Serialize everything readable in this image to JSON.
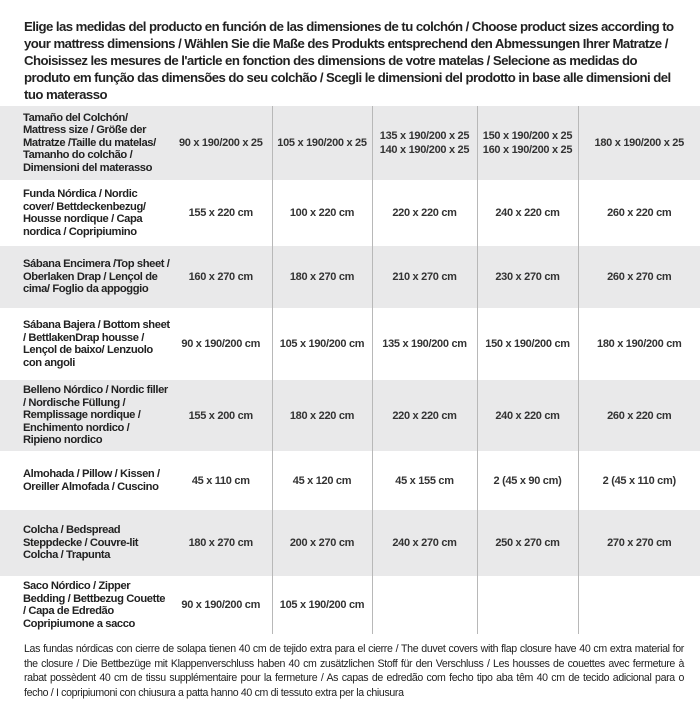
{
  "intro": "Elige las medidas del producto en función de las dimensiones de tu colchón / Choose product sizes according to your mattress dimensions / Wählen Sie die Maße des Produkts entsprechend den Abmessungen Ihrer Matratze / Choisissez les mesures de l'article en fonction des dimensions de votre matelas / Selecione as medidas do produto em função das dimensões do seu colchão / Scegli le dimensioni del prodotto in base alle dimensioni del tuo materasso",
  "table": {
    "header": {
      "label": "Tamaño del Colchón/ Mattress size / Größe der Matratze /Taille du matelas/ Tamanho do colchão / Dimensioni del materasso",
      "columns": [
        "90 x 190/200 x 25",
        "105 x 190/200 x 25",
        "135 x 190/200 x 25\n140 x 190/200 x 25",
        "150 x 190/200 x 25\n160 x 190/200 x 25",
        "180 x 190/200 x 25"
      ]
    },
    "rows": [
      {
        "label": "Funda Nórdica /  Nordic cover/ Bettdeckenbezug/ Housse nordique  / Capa nordica / Copripiumino",
        "values": [
          "155 x 220 cm",
          "100 x 220 cm",
          "220 x 220 cm",
          "240 x 220 cm",
          "260 x 220 cm"
        ]
      },
      {
        "label": "Sábana Encimera /Top sheet / Oberlaken Drap / Lençol de cima/ Foglio da appoggio",
        "values": [
          "160 x 270 cm",
          "180 x 270 cm",
          "210 x 270 cm",
          "230 x 270 cm",
          "260 x 270 cm"
        ]
      },
      {
        "label": "Sábana Bajera / Bottom sheet / BettlakenDrap housse / Lençol de baixo/ Lenzuolo con angoli",
        "values": [
          "90 x 190/200 cm",
          "105 x 190/200 cm",
          "135 x 190/200 cm",
          "150 x 190/200 cm",
          "180 x 190/200 cm"
        ]
      },
      {
        "label": "Belleno Nórdico / Nordic filler / Nordische Füllung / Remplissage nordique / Enchimento nordico / Ripieno nordico",
        "values": [
          "155 x 200 cm",
          "180 x 220 cm",
          "220 x 220 cm",
          "240 x 220 cm",
          "260 x 220 cm"
        ]
      },
      {
        "label": "Almohada  / Pillow / Kissen / Oreiller Almofada / Cuscino",
        "values": [
          "45 x 110 cm",
          "45 x 120 cm",
          "45 x 155 cm",
          "2 (45 x 90 cm)",
          "2 (45 x 110 cm)"
        ]
      },
      {
        "label": "Colcha / Bedspread Steppdecke / Couvre-lit Colcha / Trapunta",
        "values": [
          "180 x 270 cm",
          "200 x 270 cm",
          "240 x 270 cm",
          "250 x 270 cm",
          "270 x 270 cm"
        ]
      },
      {
        "label": "Saco Nórdico / Zipper Bedding / Bettbezug Couette  / Capa de Edredão Copripiumone a sacco",
        "values": [
          "90 x 190/200 cm",
          "105 x 190/200 cm",
          "",
          "",
          ""
        ]
      }
    ]
  },
  "footnote": "Las fundas nórdicas con cierre de solapa tienen 40 cm de tejido extra para el cierre  / The duvet covers with flap closure have 40 cm extra material for the closure / Die Bettbezüge mit Klappenverschluss haben 40 cm zusätzlichen Stoff für den Verschluss / Les housses de couettes avec fermeture à rabat possèdent 40 cm de tissu supplémentaire pour la fermeture / As capas de edredão com fecho tipo aba têm 40 cm de tecido adicional para o fecho / I copripiumoni con chiusura a patta hanno 40 cm di tessuto extra per la chiusura",
  "colors": {
    "row_shade": "#e9e9ea",
    "text": "#222222",
    "divider": "#b8b8b8"
  }
}
